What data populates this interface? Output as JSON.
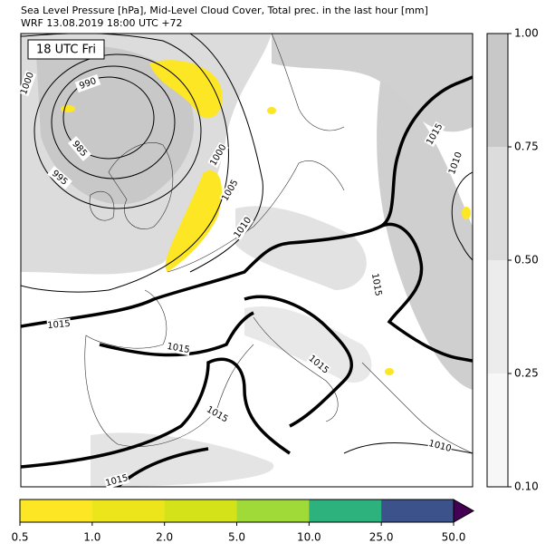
{
  "header": {
    "title": "Sea Level Pressure [hPa], Mid-Level Cloud Cover, Total prec. in the last hour [mm]",
    "subtitle": "WRF 13.08.2019 18:00 UTC +72"
  },
  "map": {
    "time_label": "18 UTC Fri",
    "contour_labels": [
      "1000",
      "990",
      "985",
      "995",
      "1000",
      "1005",
      "1010",
      "1015",
      "1015",
      "1015",
      "1015",
      "1015",
      "1015",
      "1010",
      "1010",
      "1015"
    ]
  },
  "cloud_colorbar": {
    "ticks": [
      "0.10",
      "0.25",
      "0.50",
      "0.75",
      "1.00"
    ],
    "colors": [
      "#f7f7f7",
      "#ececec",
      "#dcdcdc",
      "#c8c8c8"
    ]
  },
  "precip_colorbar": {
    "ticks": [
      "0.5",
      "1.0",
      "2.0",
      "5.0",
      "10.0",
      "25.0",
      "50.0"
    ],
    "colors": [
      "#fde725",
      "#ece51b",
      "#d4e21a",
      "#a0da39",
      "#2db27d",
      "#3b528b"
    ],
    "extend_color": "#440154"
  }
}
